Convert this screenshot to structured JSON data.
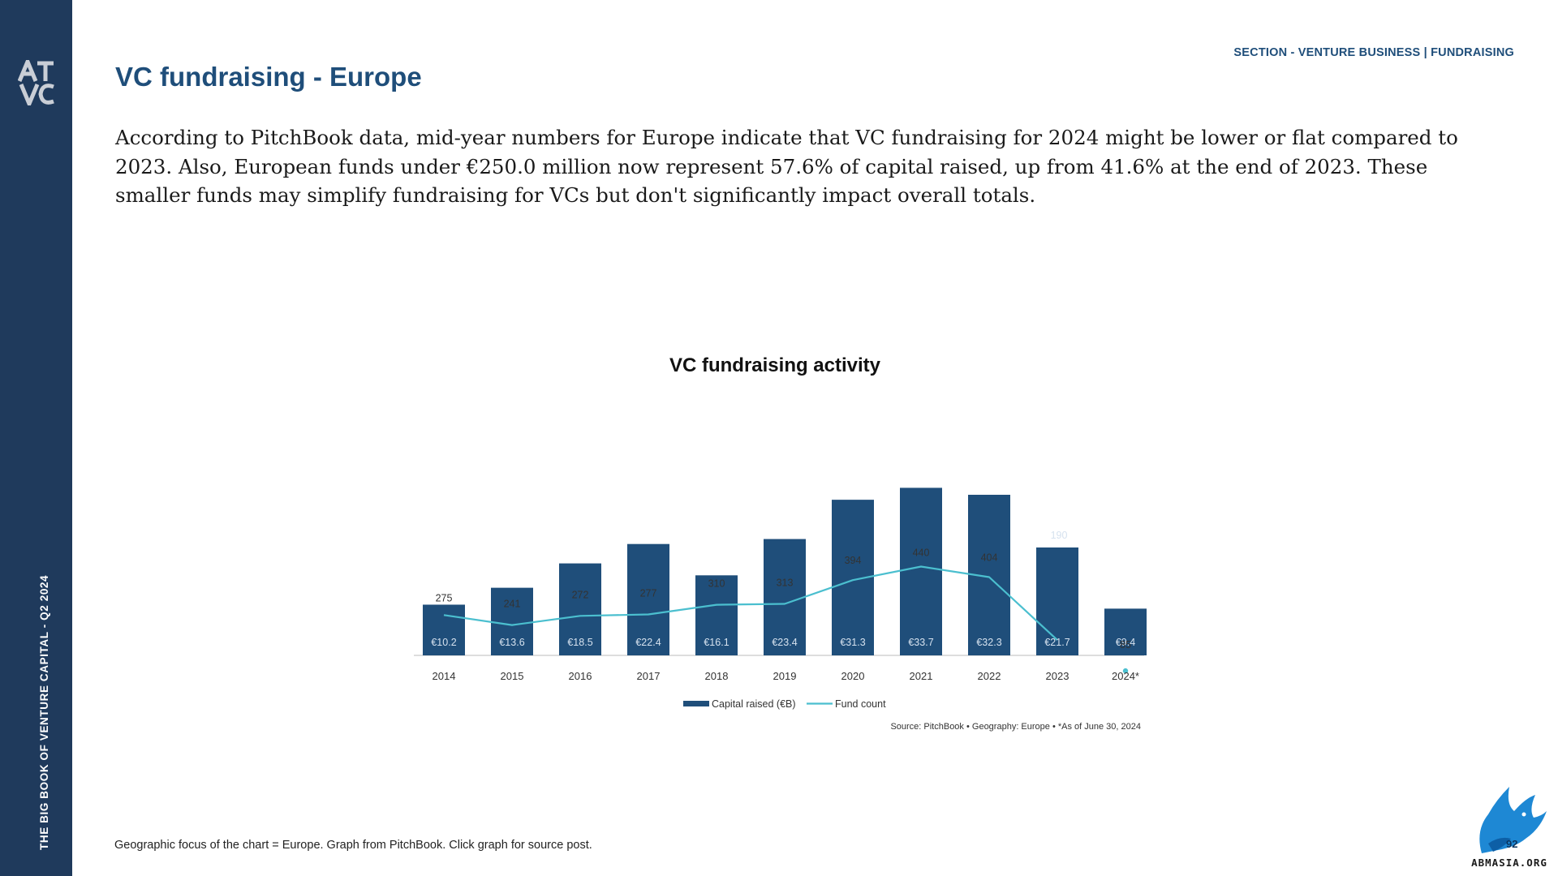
{
  "sidebar": {
    "vertical_text": "THE BIG BOOK OF VENTURE CAPITAL - Q2 2024",
    "logo_icon": "atvc-logo-icon",
    "color": "#1f3a5c"
  },
  "header": {
    "section_label": "SECTION - VENTURE BUSINESS | FUNDRAISING",
    "title": "VC fundraising - Europe"
  },
  "intro_text": "According to PitchBook data, mid-year numbers for Europe indicate that VC fundraising for 2024 might be lower or flat compared to 2023. Also, European funds under €250.0 million now represent 57.6% of capital raised, up from 41.6% at the end of 2023. These smaller funds may simplify fundraising for VCs but don't significantly impact overall totals.",
  "chart_data": {
    "type": "bar",
    "title": "VC fundraising activity",
    "categories": [
      "2014",
      "2015",
      "2016",
      "2017",
      "2018",
      "2019",
      "2020",
      "2021",
      "2022",
      "2023",
      "2024*"
    ],
    "series": [
      {
        "name": "Capital raised (€B)",
        "type": "bar",
        "values": [
          10.2,
          13.6,
          18.5,
          22.4,
          16.1,
          23.4,
          31.3,
          33.7,
          32.3,
          21.7,
          9.4
        ],
        "labels": [
          "€10.2",
          "€13.6",
          "€18.5",
          "€22.4",
          "€16.1",
          "€23.4",
          "€31.3",
          "€33.7",
          "€32.3",
          "€21.7",
          "€9.4"
        ],
        "color": "#1f4e7a"
      },
      {
        "name": "Fund count",
        "type": "line",
        "values": [
          275,
          241,
          272,
          277,
          310,
          313,
          394,
          440,
          404,
          190,
          85
        ],
        "color": "#4bbfcf"
      }
    ],
    "legend_position": "bottom",
    "source": "Source: PitchBook  •  Geography: Europe  •  *As of June 30, 2024",
    "grid": false
  },
  "footnote": "Geographic focus of the chart = Europe. Graph from PitchBook. Click graph for source post.",
  "badge": {
    "page_number": "92",
    "site_text": "ABMASIA.ORG",
    "icon": "eagle-logo-icon"
  }
}
